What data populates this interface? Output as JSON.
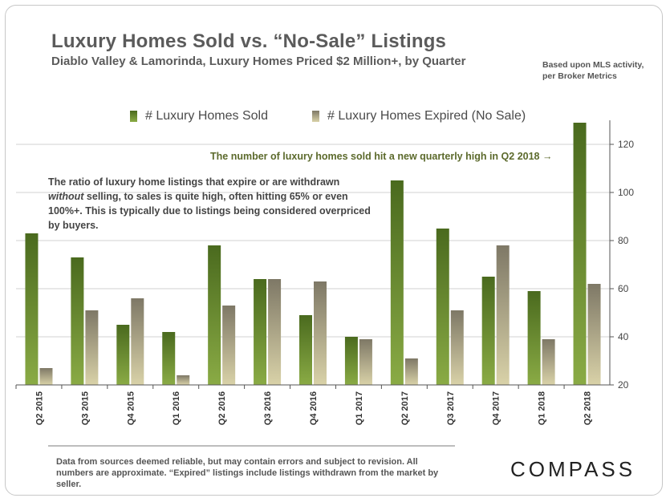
{
  "header": {
    "title": "Luxury Homes Sold vs. “No-Sale” Listings",
    "subtitle": "Diablo Valley & Lamorinda, Luxury Homes Priced $2 Million+, by Quarter",
    "basis_line1": "Based upon MLS activity,",
    "basis_line2": "per Broker Metrics"
  },
  "notes": {
    "highlight": "The number of luxury homes sold hit a new quarterly high in Q2 2018 →",
    "ratio_part1": "The ratio of luxury home listings that expire or are withdrawn ",
    "ratio_emph": "without",
    "ratio_part2": " selling, to sales is quite high, often hitting 65% or even 100%+. This is typically due to listings being considered overpriced by buyers."
  },
  "footer": {
    "disclaimer": "Data from sources deemed reliable, but may contain errors and subject to revision. All numbers are approximate.  “Expired” listings include listings withdrawn from the market by seller.",
    "brand": "COMPASS"
  },
  "colors": {
    "sold_dark": "#4a6a1e",
    "sold_light": "#8aab45",
    "expired_dark": "#7e7866",
    "expired_light": "#d9d2a8"
  },
  "chart_data": {
    "type": "bar",
    "categories": [
      "Q2 2015",
      "Q3 2015",
      "Q4 2015",
      "Q1 2016",
      "Q2 2016",
      "Q3 2016",
      "Q4 2016",
      "Q1 2017",
      "Q2 2017",
      "Q3 2017",
      "Q4 2017",
      "Q1 2018",
      "Q2 2018"
    ],
    "series": [
      {
        "name": "# Luxury Homes Sold",
        "values": [
          83,
          73,
          45,
          42,
          78,
          64,
          49,
          40,
          105,
          85,
          65,
          59,
          129
        ]
      },
      {
        "name": "# Luxury Homes Expired (No Sale)",
        "values": [
          27,
          51,
          56,
          24,
          53,
          64,
          63,
          39,
          31,
          51,
          78,
          39,
          62
        ]
      }
    ],
    "ylim": [
      20,
      130
    ],
    "yticks": [
      "20",
      "40",
      "60",
      "80",
      "100",
      "120"
    ],
    "y_axis_side": "right",
    "grid": true,
    "legend_position": "top"
  }
}
